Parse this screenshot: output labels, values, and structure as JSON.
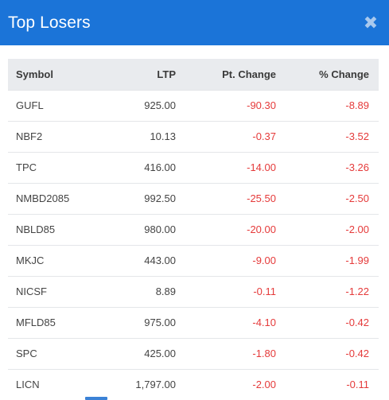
{
  "header": {
    "title": "Top Losers",
    "close_label": "✖"
  },
  "table": {
    "columns": [
      "Symbol",
      "LTP",
      "Pt. Change",
      "% Change"
    ],
    "rows": [
      {
        "symbol": "GUFL",
        "ltp": "925.00",
        "pt_change": "-90.30",
        "pct_change": "-8.89"
      },
      {
        "symbol": "NBF2",
        "ltp": "10.13",
        "pt_change": "-0.37",
        "pct_change": "-3.52"
      },
      {
        "symbol": "TPC",
        "ltp": "416.00",
        "pt_change": "-14.00",
        "pct_change": "-3.26"
      },
      {
        "symbol": "NMBD2085",
        "ltp": "992.50",
        "pt_change": "-25.50",
        "pct_change": "-2.50"
      },
      {
        "symbol": "NBLD85",
        "ltp": "980.00",
        "pt_change": "-20.00",
        "pct_change": "-2.00"
      },
      {
        "symbol": "MKJC",
        "ltp": "443.00",
        "pt_change": "-9.00",
        "pct_change": "-1.99"
      },
      {
        "symbol": "NICSF",
        "ltp": "8.89",
        "pt_change": "-0.11",
        "pct_change": "-1.22"
      },
      {
        "symbol": "MFLD85",
        "ltp": "975.00",
        "pt_change": "-4.10",
        "pct_change": "-0.42"
      },
      {
        "symbol": "SPC",
        "ltp": "425.00",
        "pt_change": "-1.80",
        "pct_change": "-0.42"
      },
      {
        "symbol": "LICN",
        "ltp": "1,797.00",
        "pt_change": "-2.00",
        "pct_change": "-0.11"
      }
    ]
  },
  "colors": {
    "header_bg": "#1b74d8",
    "negative": "#e53a3a",
    "table_header_bg": "#e9ebee"
  }
}
